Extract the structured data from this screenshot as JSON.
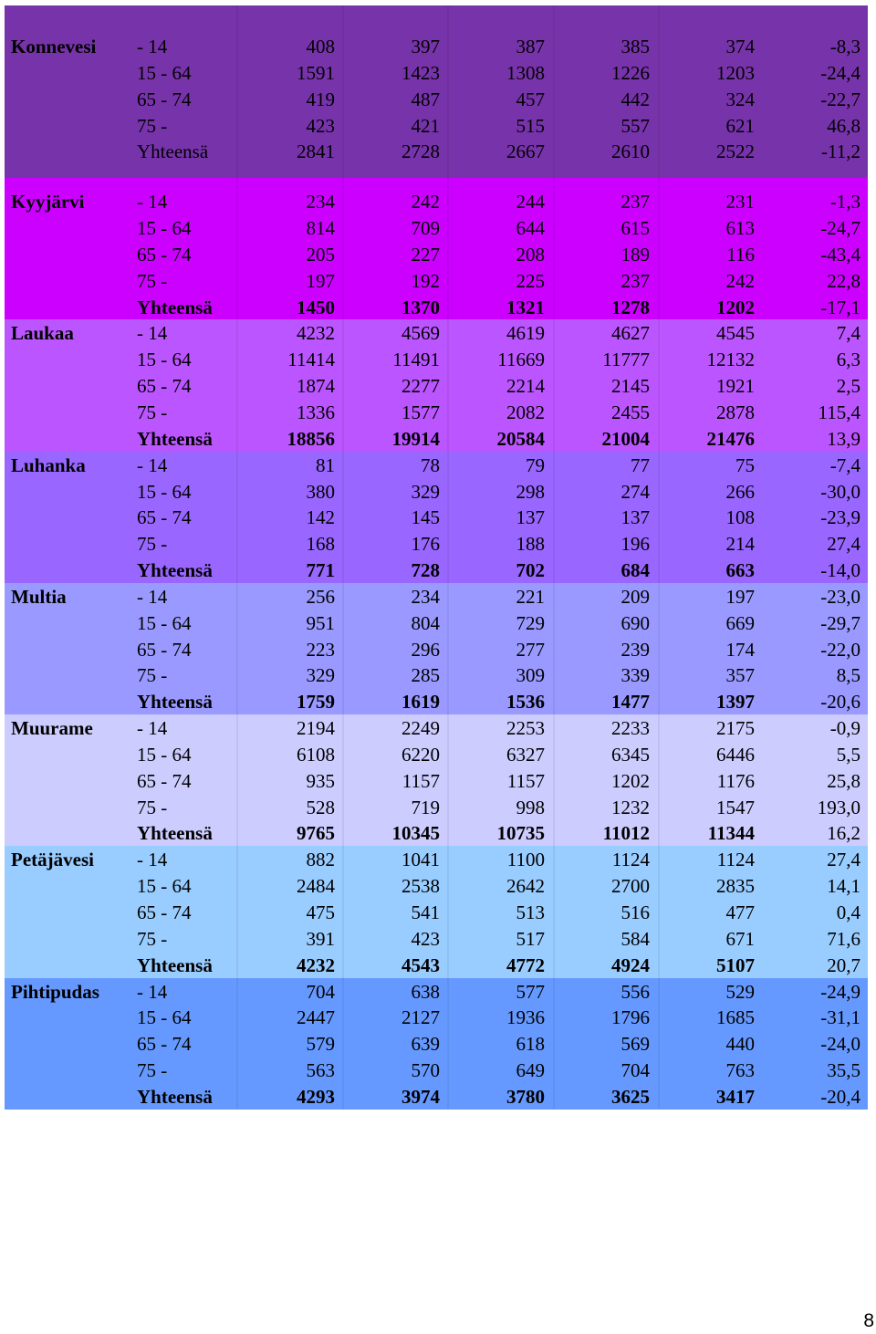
{
  "colors": {
    "konnevesi": "#7733aa",
    "kyyjarvi": "#cc00ff",
    "laukaa": "#bb55ff",
    "luhanka": "#9966ff",
    "multia": "#9999ff",
    "muurame": "#ccccff",
    "petajavesi": "#99ccff",
    "pihtipudas": "#6699ff"
  },
  "municipalities": [
    {
      "name": "Konnevesi",
      "rows": [
        {
          "age": "- 14",
          "values": [
            "408",
            "397",
            "387",
            "385",
            "374"
          ],
          "change": "-8,3"
        },
        {
          "age": "15 - 64",
          "values": [
            "1591",
            "1423",
            "1308",
            "1226",
            "1203"
          ],
          "change": "-24,4"
        },
        {
          "age": "65 - 74",
          "values": [
            "419",
            "487",
            "457",
            "442",
            "324"
          ],
          "change": "-22,7"
        },
        {
          "age": "75 -",
          "values": [
            "423",
            "421",
            "515",
            "557",
            "621"
          ],
          "change": "46,8"
        },
        {
          "age": "Yhteensä",
          "values": [
            "2841",
            "2728",
            "2667",
            "2610",
            "2522"
          ],
          "change": "-11,2"
        }
      ]
    },
    {
      "name": "Kyyjärvi",
      "rows": [
        {
          "age": "- 14",
          "values": [
            "234",
            "242",
            "244",
            "237",
            "231"
          ],
          "change": "-1,3"
        },
        {
          "age": "15 - 64",
          "values": [
            "814",
            "709",
            "644",
            "615",
            "613"
          ],
          "change": "-24,7"
        },
        {
          "age": "65 - 74",
          "values": [
            "205",
            "227",
            "208",
            "189",
            "116"
          ],
          "change": "-43,4"
        },
        {
          "age": "75 -",
          "values": [
            "197",
            "192",
            "225",
            "237",
            "242"
          ],
          "change": "22,8"
        },
        {
          "age": "Yhteensä",
          "values": [
            "1450",
            "1370",
            "1321",
            "1278",
            "1202"
          ],
          "change": "-17,1"
        }
      ]
    },
    {
      "name": "Laukaa",
      "rows": [
        {
          "age": "- 14",
          "values": [
            "4232",
            "4569",
            "4619",
            "4627",
            "4545"
          ],
          "change": "7,4"
        },
        {
          "age": "15 - 64",
          "values": [
            "11414",
            "11491",
            "11669",
            "11777",
            "12132"
          ],
          "change": "6,3"
        },
        {
          "age": "65 - 74",
          "values": [
            "1874",
            "2277",
            "2214",
            "2145",
            "1921"
          ],
          "change": "2,5"
        },
        {
          "age": "75 -",
          "values": [
            "1336",
            "1577",
            "2082",
            "2455",
            "2878"
          ],
          "change": "115,4"
        },
        {
          "age": "Yhteensä",
          "values": [
            "18856",
            "19914",
            "20584",
            "21004",
            "21476"
          ],
          "change": "13,9"
        }
      ]
    },
    {
      "name": "Luhanka",
      "rows": [
        {
          "age": "- 14",
          "values": [
            "81",
            "78",
            "79",
            "77",
            "75"
          ],
          "change": "-7,4"
        },
        {
          "age": "15 - 64",
          "values": [
            "380",
            "329",
            "298",
            "274",
            "266"
          ],
          "change": "-30,0"
        },
        {
          "age": "65 - 74",
          "values": [
            "142",
            "145",
            "137",
            "137",
            "108"
          ],
          "change": "-23,9"
        },
        {
          "age": "75 -",
          "values": [
            "168",
            "176",
            "188",
            "196",
            "214"
          ],
          "change": "27,4"
        },
        {
          "age": "Yhteensä",
          "values": [
            "771",
            "728",
            "702",
            "684",
            "663"
          ],
          "change": "-14,0"
        }
      ]
    },
    {
      "name": "Multia",
      "rows": [
        {
          "age": "- 14",
          "values": [
            "256",
            "234",
            "221",
            "209",
            "197"
          ],
          "change": "-23,0"
        },
        {
          "age": "15 - 64",
          "values": [
            "951",
            "804",
            "729",
            "690",
            "669"
          ],
          "change": "-29,7"
        },
        {
          "age": "65 - 74",
          "values": [
            "223",
            "296",
            "277",
            "239",
            "174"
          ],
          "change": "-22,0"
        },
        {
          "age": "75 -",
          "values": [
            "329",
            "285",
            "309",
            "339",
            "357"
          ],
          "change": "8,5"
        },
        {
          "age": "Yhteensä",
          "values": [
            "1759",
            "1619",
            "1536",
            "1477",
            "1397"
          ],
          "change": "-20,6"
        }
      ]
    },
    {
      "name": "Muurame",
      "rows": [
        {
          "age": "- 14",
          "values": [
            "2194",
            "2249",
            "2253",
            "2233",
            "2175"
          ],
          "change": "-0,9"
        },
        {
          "age": "15 - 64",
          "values": [
            "6108",
            "6220",
            "6327",
            "6345",
            "6446"
          ],
          "change": "5,5"
        },
        {
          "age": "65 - 74",
          "values": [
            "935",
            "1157",
            "1157",
            "1202",
            "1176"
          ],
          "change": "25,8"
        },
        {
          "age": "75 -",
          "values": [
            "528",
            "719",
            "998",
            "1232",
            "1547"
          ],
          "change": "193,0"
        },
        {
          "age": "Yhteensä",
          "values": [
            "9765",
            "10345",
            "10735",
            "11012",
            "11344"
          ],
          "change": "16,2"
        }
      ]
    },
    {
      "name": "Petäjävesi",
      "rows": [
        {
          "age": "- 14",
          "values": [
            "882",
            "1041",
            "1100",
            "1124",
            "1124"
          ],
          "change": "27,4"
        },
        {
          "age": "15 - 64",
          "values": [
            "2484",
            "2538",
            "2642",
            "2700",
            "2835"
          ],
          "change": "14,1"
        },
        {
          "age": "65 - 74",
          "values": [
            "475",
            "541",
            "513",
            "516",
            "477"
          ],
          "change": "0,4"
        },
        {
          "age": "75 -",
          "values": [
            "391",
            "423",
            "517",
            "584",
            "671"
          ],
          "change": "71,6"
        },
        {
          "age": "Yhteensä",
          "values": [
            "4232",
            "4543",
            "4772",
            "4924",
            "5107"
          ],
          "change": "20,7"
        }
      ]
    },
    {
      "name": "Pihtipudas",
      "rows": [
        {
          "age": "- 14",
          "values": [
            "704",
            "638",
            "577",
            "556",
            "529"
          ],
          "change": "-24,9"
        },
        {
          "age": "15 - 64",
          "values": [
            "2447",
            "2127",
            "1936",
            "1796",
            "1685"
          ],
          "change": "-31,1"
        },
        {
          "age": "65 - 74",
          "values": [
            "579",
            "639",
            "618",
            "569",
            "440"
          ],
          "change": "-24,0"
        },
        {
          "age": "75 -",
          "values": [
            "563",
            "570",
            "649",
            "704",
            "763"
          ],
          "change": "35,5"
        },
        {
          "age": "Yhteensä",
          "values": [
            "4293",
            "3974",
            "3780",
            "3625",
            "3417"
          ],
          "change": "-20,4"
        }
      ]
    }
  ],
  "page_number": "8"
}
